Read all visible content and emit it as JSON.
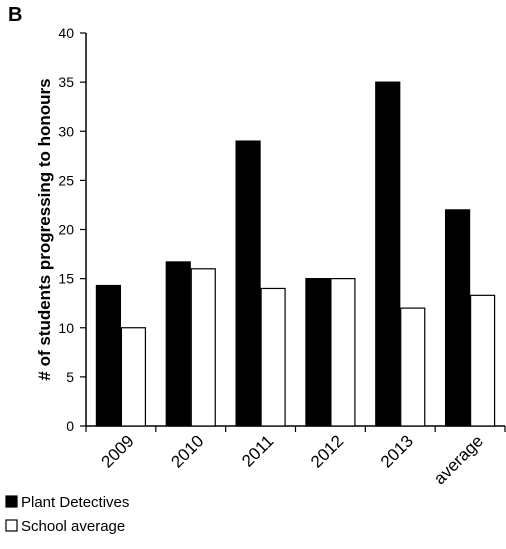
{
  "panel_label": "B",
  "chart_data": {
    "type": "bar",
    "title": "",
    "xlabel": "",
    "ylabel": "# of students progressing to honours",
    "ylim": [
      0,
      40
    ],
    "yticks": [
      0,
      5,
      10,
      15,
      20,
      25,
      30,
      35,
      40
    ],
    "categories": [
      "2009",
      "2010",
      "2011",
      "2012",
      "2013",
      "average"
    ],
    "series": [
      {
        "name": "Plant Detectives",
        "values": [
          14.3,
          16.7,
          29,
          15,
          35,
          22
        ],
        "color": "#000000"
      },
      {
        "name": "School average",
        "values": [
          10,
          16,
          14,
          15,
          12,
          13.3
        ],
        "color": "#ffffff"
      }
    ],
    "grid": false,
    "legend": "bottom-left"
  }
}
